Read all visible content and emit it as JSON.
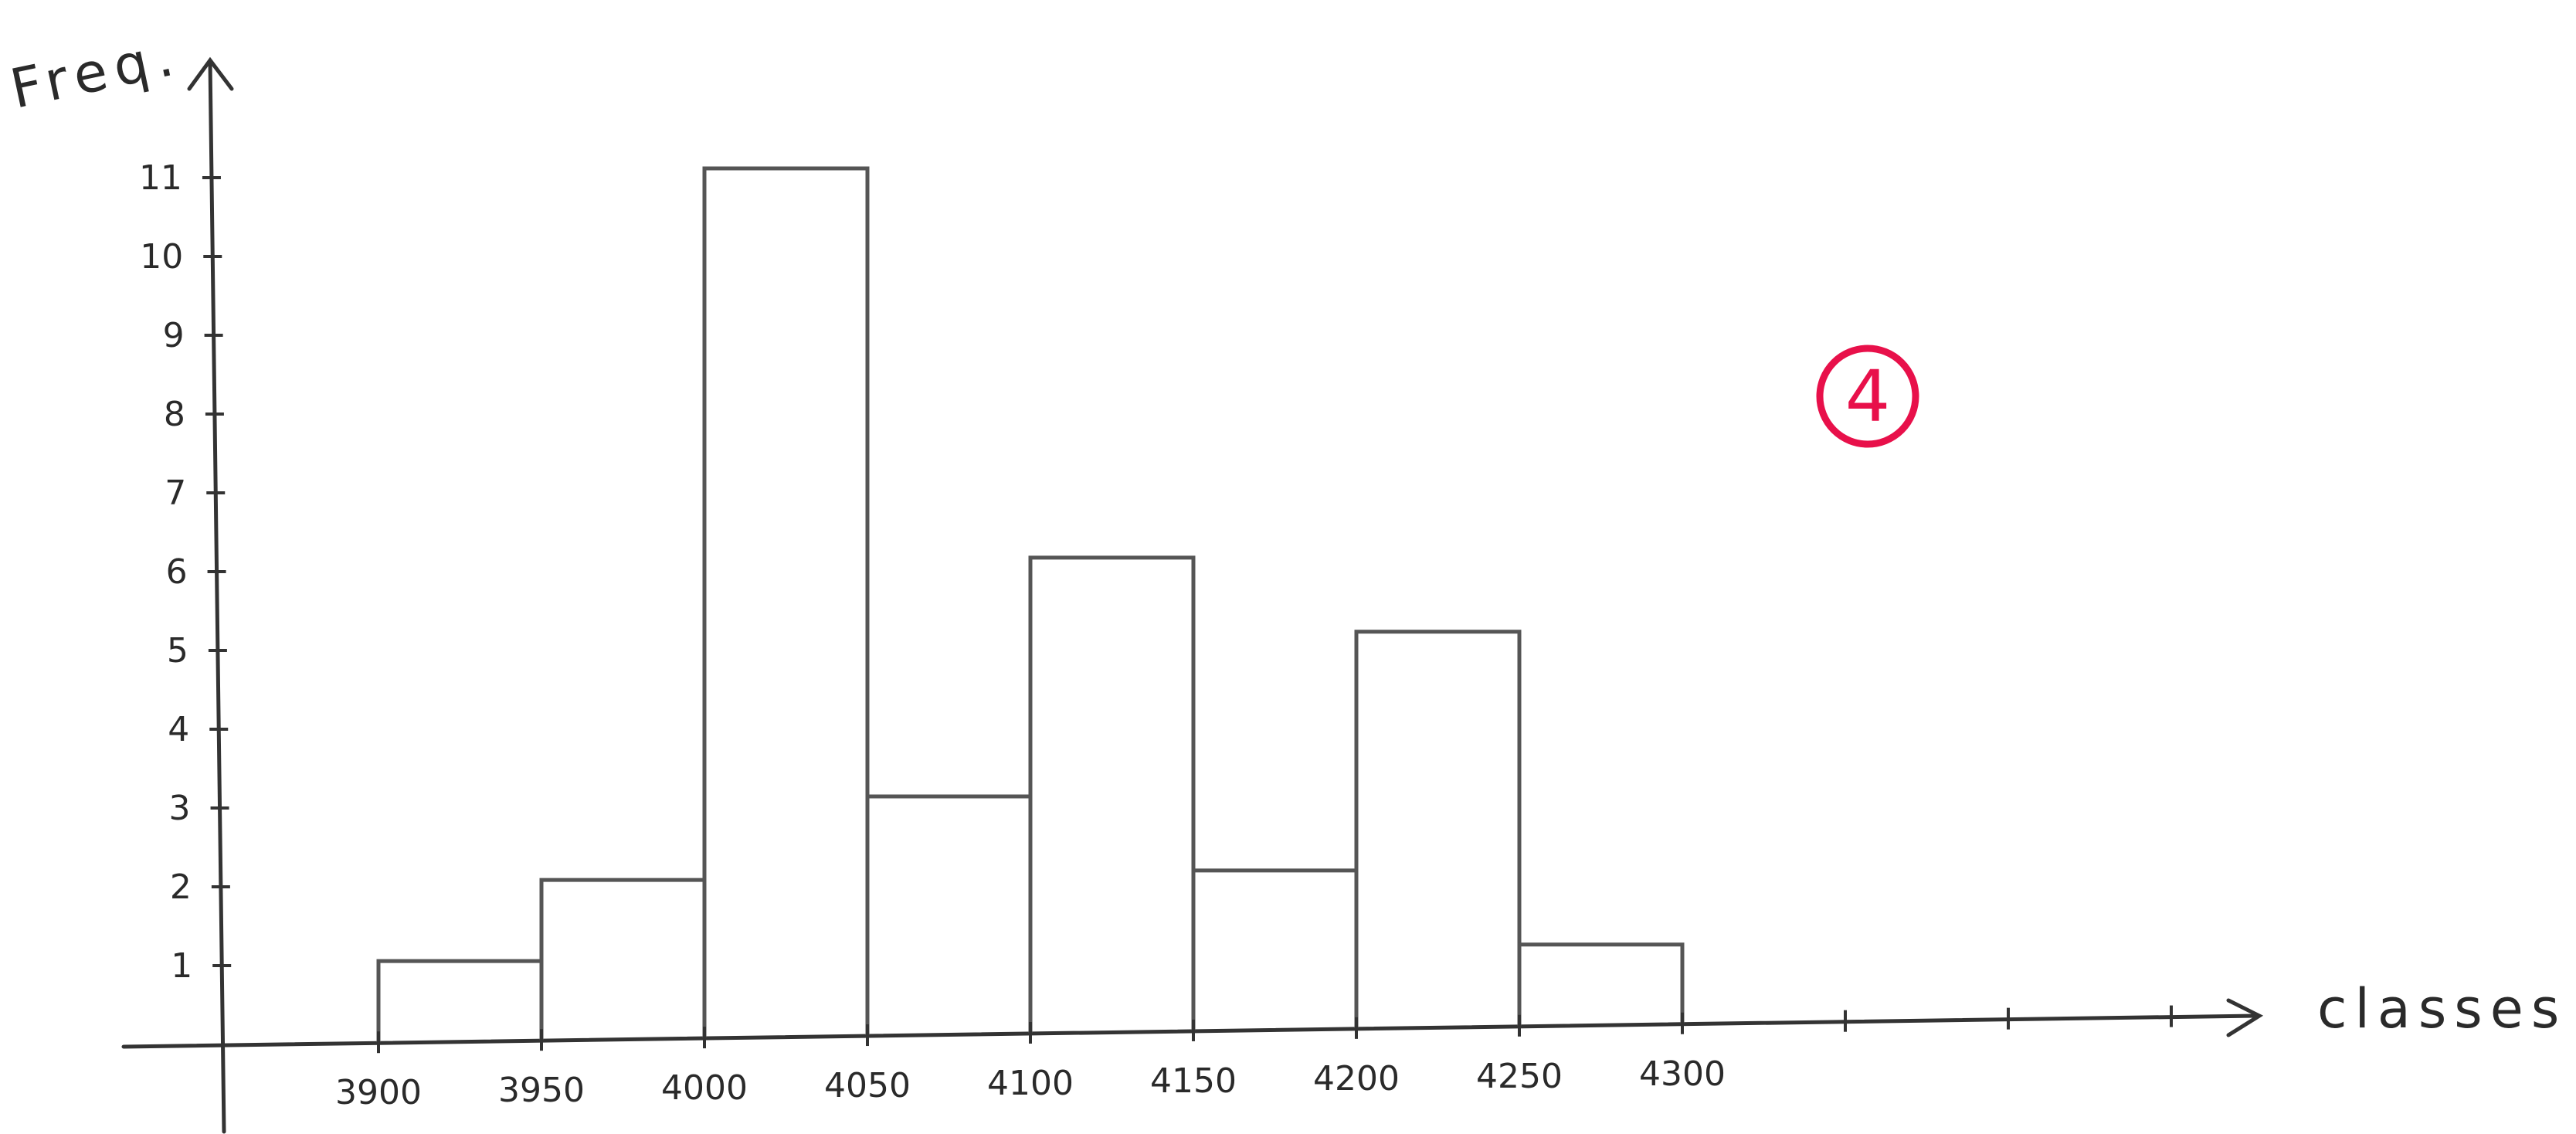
{
  "chart_data": {
    "type": "bar",
    "xlabel": "classes",
    "ylabel": "Freq.",
    "bins": [
      {
        "from": 3900,
        "to": 3950,
        "value": 1
      },
      {
        "from": 3950,
        "to": 4000,
        "value": 2
      },
      {
        "from": 4000,
        "to": 4050,
        "value": 11
      },
      {
        "from": 4050,
        "to": 4100,
        "value": 3
      },
      {
        "from": 4100,
        "to": 4150,
        "value": 6
      },
      {
        "from": 4150,
        "to": 4200,
        "value": 2
      },
      {
        "from": 4200,
        "to": 4250,
        "value": 5
      },
      {
        "from": 4250,
        "to": 4300,
        "value": 1
      }
    ],
    "x_tick_labels": [
      "3900",
      "3950",
      "4000",
      "4050",
      "4100",
      "4150",
      "4200",
      "4250",
      "4300"
    ],
    "y_tick_labels": [
      "1",
      "2",
      "3",
      "4",
      "5",
      "6",
      "7",
      "8",
      "9",
      "10",
      "11"
    ],
    "ylim": [
      0,
      11
    ],
    "grid": false,
    "legend": "none"
  },
  "annotation": {
    "text": "4",
    "color": "#e8104a"
  },
  "colors": {
    "ink": "#333333",
    "bar_outline": "#555555"
  }
}
